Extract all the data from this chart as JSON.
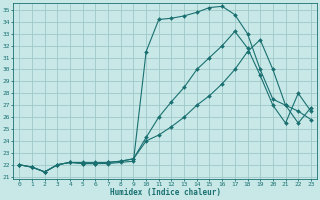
{
  "xlabel": "Humidex (Indice chaleur)",
  "bg_color": "#c8e8e8",
  "grid_color": "#a0c8c8",
  "line_color": "#1a7070",
  "xlim": [
    -0.5,
    23.5
  ],
  "ylim": [
    20.8,
    35.6
  ],
  "yticks": [
    21,
    22,
    23,
    24,
    25,
    26,
    27,
    28,
    29,
    30,
    31,
    32,
    33,
    34,
    35
  ],
  "xticks": [
    0,
    1,
    2,
    3,
    4,
    5,
    6,
    7,
    8,
    9,
    10,
    11,
    12,
    13,
    14,
    15,
    16,
    17,
    18,
    19,
    20,
    21,
    22,
    23
  ],
  "line1_x": [
    0,
    1,
    2,
    3,
    4,
    5,
    6,
    7,
    8,
    9,
    10,
    11,
    12,
    13,
    14,
    15,
    16,
    17,
    18,
    19,
    20,
    21,
    22,
    23
  ],
  "line1_y": [
    22.0,
    21.8,
    21.4,
    22.0,
    22.2,
    22.1,
    22.1,
    22.1,
    22.2,
    22.3,
    31.5,
    34.2,
    34.3,
    34.5,
    34.8,
    35.2,
    35.3,
    34.6,
    33.0,
    30.0,
    27.5,
    27.0,
    26.5,
    25.8
  ],
  "line2_x": [
    0,
    1,
    2,
    3,
    4,
    5,
    6,
    7,
    8,
    9,
    10,
    11,
    12,
    13,
    14,
    15,
    16,
    17,
    18,
    19,
    20,
    21,
    22,
    23
  ],
  "line2_y": [
    22.0,
    21.8,
    21.4,
    22.0,
    22.2,
    22.1,
    22.1,
    22.2,
    22.3,
    22.5,
    24.3,
    26.0,
    27.3,
    28.5,
    30.0,
    31.0,
    32.0,
    33.2,
    31.8,
    29.5,
    27.0,
    25.5,
    28.0,
    26.5
  ],
  "line3_x": [
    0,
    1,
    2,
    3,
    4,
    5,
    6,
    7,
    8,
    9,
    10,
    11,
    12,
    13,
    14,
    15,
    16,
    17,
    18,
    19,
    20,
    21,
    22,
    23
  ],
  "line3_y": [
    22.0,
    21.8,
    21.4,
    22.0,
    22.2,
    22.2,
    22.2,
    22.2,
    22.3,
    22.5,
    24.0,
    24.5,
    25.2,
    26.0,
    27.0,
    27.8,
    28.8,
    30.0,
    31.5,
    32.5,
    30.0,
    27.0,
    25.5,
    26.8
  ]
}
